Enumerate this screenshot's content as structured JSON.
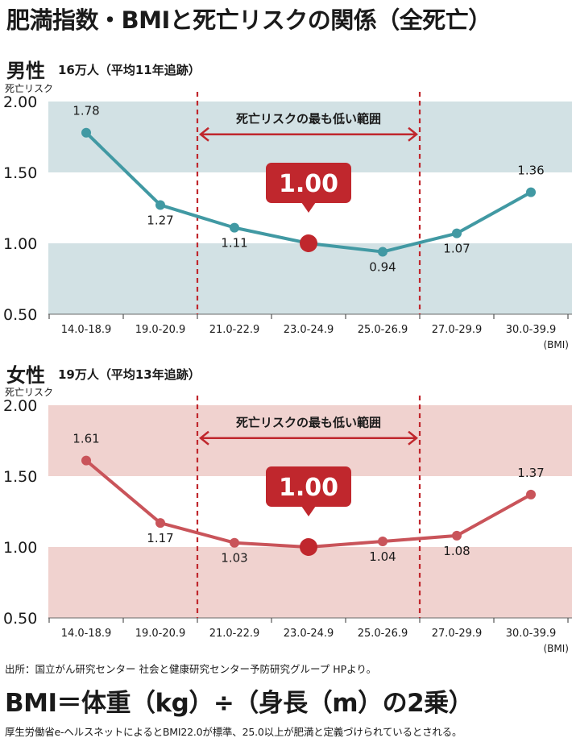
{
  "title": "肥満指数・BMIと死亡リスクの関係（全死亡）",
  "chart_data": [
    {
      "type": "line",
      "section_title": "男性",
      "cohort": "16万人（平均11年追跡）",
      "ylabel": "死亡リスク",
      "xunit": "(BMI)",
      "categories": [
        "14.0-18.9",
        "19.0-20.9",
        "21.0-22.9",
        "23.0-24.9",
        "25.0-26.9",
        "27.0-29.9",
        "30.0-39.9"
      ],
      "values": [
        1.78,
        1.27,
        1.11,
        1.0,
        0.94,
        1.07,
        1.36
      ],
      "value_labels": [
        "1.78",
        "1.27",
        "1.11",
        "",
        "0.94",
        "1.07",
        "1.36"
      ],
      "ylim": [
        0.5,
        2.0
      ],
      "yticks": [
        "0.50",
        "1.00",
        "1.50",
        "2.00"
      ],
      "range_label": "死亡リスクの最も低い範囲",
      "reference_label": "1.00",
      "color": "#4199a3",
      "band_color": "#d2e1e4"
    },
    {
      "type": "line",
      "section_title": "女性",
      "cohort": "19万人（平均13年追跡）",
      "ylabel": "死亡リスク",
      "xunit": "(BMI)",
      "categories": [
        "14.0-18.9",
        "19.0-20.9",
        "21.0-22.9",
        "23.0-24.9",
        "25.0-26.9",
        "27.0-29.9",
        "30.0-39.9"
      ],
      "values": [
        1.61,
        1.17,
        1.03,
        1.0,
        1.04,
        1.08,
        1.37
      ],
      "value_labels": [
        "1.61",
        "1.17",
        "1.03",
        "",
        "1.04",
        "1.08",
        "1.37"
      ],
      "ylim": [
        0.5,
        2.0
      ],
      "yticks": [
        "0.50",
        "1.00",
        "1.50",
        "2.00"
      ],
      "range_label": "死亡リスクの最も低い範囲",
      "reference_label": "1.00",
      "color": "#c9545a",
      "band_color": "#f0d2cf"
    }
  ],
  "accent_color": "#c0272d",
  "source": "出所：国立がん研究センター 社会と健康研究センター予防研究グループ HPより。",
  "formula": "BMI＝体重（kg）÷（身長（m）の2乗）",
  "footnote": "厚生労働省e-ヘルスネットによるとBMI22.0が標準、25.0以上が肥満と定義づけられているとされる。"
}
